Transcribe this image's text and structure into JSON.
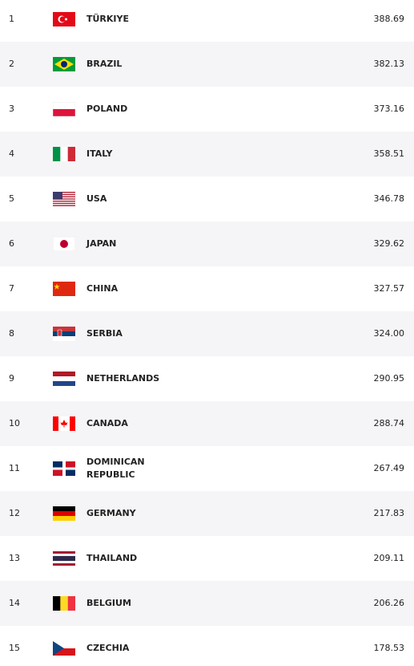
{
  "table": {
    "rows": [
      {
        "rank": 1,
        "name": "TÜRKIYE",
        "points": "388.69"
      },
      {
        "rank": 2,
        "name": "BRAZIL",
        "points": "382.13"
      },
      {
        "rank": 3,
        "name": "POLAND",
        "points": "373.16"
      },
      {
        "rank": 4,
        "name": "ITALY",
        "points": "358.51"
      },
      {
        "rank": 5,
        "name": "USA",
        "points": "346.78"
      },
      {
        "rank": 6,
        "name": "JAPAN",
        "points": "329.62"
      },
      {
        "rank": 7,
        "name": "CHINA",
        "points": "327.57"
      },
      {
        "rank": 8,
        "name": "SERBIA",
        "points": "324.00"
      },
      {
        "rank": 9,
        "name": "NETHERLANDS",
        "points": "290.95"
      },
      {
        "rank": 10,
        "name": "CANADA",
        "points": "288.74"
      },
      {
        "rank": 11,
        "name": "DOMINICAN REPUBLIC",
        "points": "267.49"
      },
      {
        "rank": 12,
        "name": "GERMANY",
        "points": "217.83"
      },
      {
        "rank": 13,
        "name": "THAILAND",
        "points": "209.11"
      },
      {
        "rank": 14,
        "name": "BELGIUM",
        "points": "206.26"
      },
      {
        "rank": 15,
        "name": "CZECHIA",
        "points": "178.53"
      }
    ]
  }
}
